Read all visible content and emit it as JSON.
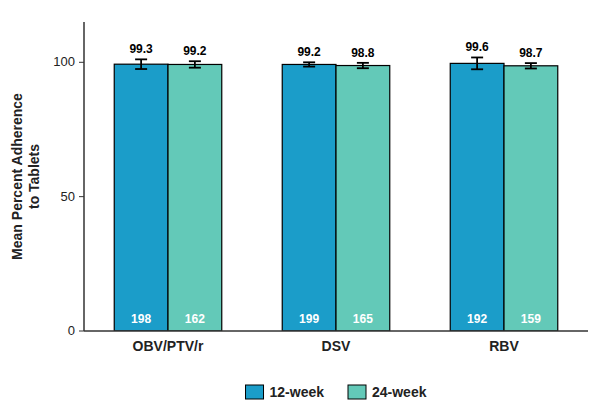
{
  "chart_data": {
    "type": "bar",
    "ylabel": "Mean Percent Adherence\nto Tablets",
    "categories": [
      "OBV/PTV/r",
      "DSV",
      "RBV"
    ],
    "series": [
      {
        "name": "12-week",
        "color": "#1B9DC9",
        "values": [
          99.3,
          99.2,
          99.6
        ],
        "errors": [
          1.8,
          0.8,
          2.2
        ],
        "n": [
          198,
          199,
          192
        ]
      },
      {
        "name": "24-week",
        "color": "#63C9B8",
        "values": [
          99.2,
          98.8,
          98.7
        ],
        "errors": [
          1.2,
          1.0,
          1.0
        ],
        "n": [
          162,
          165,
          159
        ]
      }
    ],
    "ylim": [
      0,
      115
    ],
    "yticks": [
      0,
      50,
      100
    ],
    "grid": false,
    "legend": "bottom",
    "data_labels": true
  }
}
